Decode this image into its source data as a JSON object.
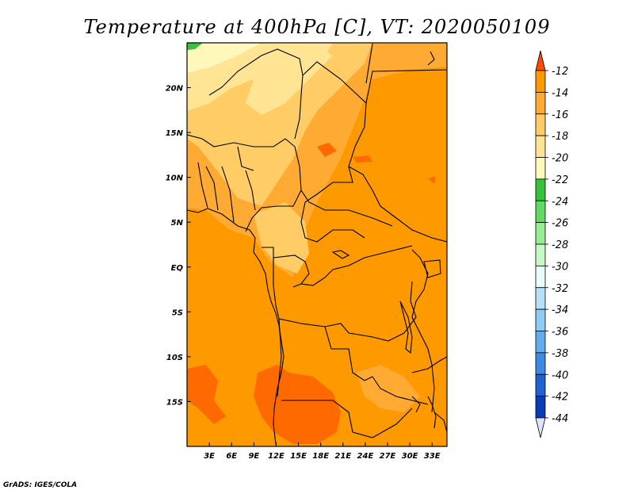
{
  "title": "Temperature at 400hPa [C], VT: 2020050109",
  "credit": "GrADS: IGES/COLA",
  "map": {
    "lat_labels": [
      "20N",
      "15N",
      "10N",
      "5N",
      "EQ",
      "5S",
      "10S",
      "15S"
    ],
    "lat_values": [
      20,
      15,
      10,
      5,
      0,
      -5,
      -10,
      -15
    ],
    "lon_labels": [
      "3E",
      "6E",
      "9E",
      "12E",
      "15E",
      "18E",
      "21E",
      "24E",
      "27E",
      "30E",
      "33E"
    ],
    "lon_values": [
      3,
      6,
      9,
      12,
      15,
      18,
      21,
      24,
      27,
      30,
      33
    ],
    "lat_range": [
      -20,
      25
    ],
    "lon_range": [
      0,
      35
    ]
  },
  "colorbar": {
    "labels": [
      "-12",
      "-14",
      "-16",
      "-18",
      "-20",
      "-22",
      "-24",
      "-26",
      "-28",
      "-30",
      "-32",
      "-34",
      "-36",
      "-38",
      "-40",
      "-42",
      "-44"
    ],
    "colors": [
      "#ff6a00",
      "#ff9900",
      "#ffab33",
      "#ffcc66",
      "#ffe494",
      "#fff7bb",
      "#36c33c",
      "#60da60",
      "#95ec92",
      "#c5f8c4",
      "#e8fbf9",
      "#b5e0f6",
      "#8fcbf2",
      "#62acee",
      "#3d8ae5",
      "#1f63d3",
      "#0a3cb8",
      "#0c0c6e"
    ],
    "top_arrow_color": "#ff4a00",
    "bottom_arrow_color": "#e0e4f8"
  }
}
